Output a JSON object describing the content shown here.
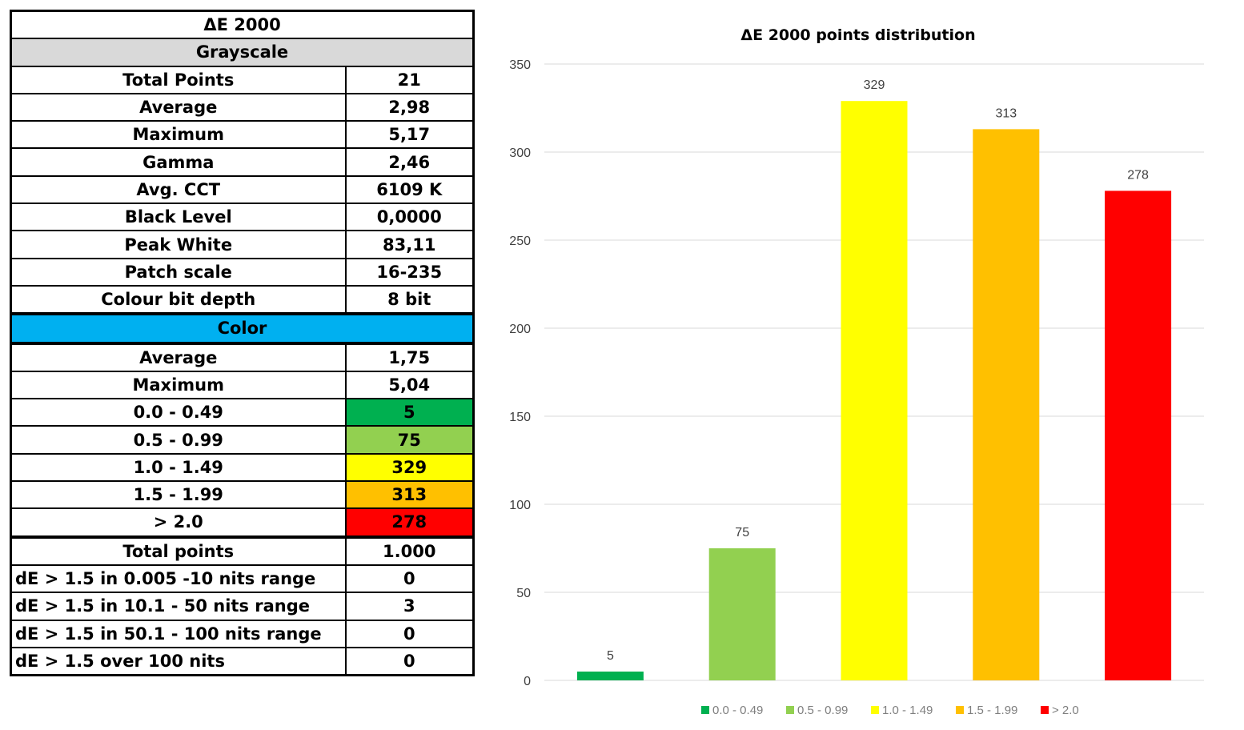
{
  "table": {
    "title": "ΔE 2000",
    "grayscale_header": "Grayscale",
    "grayscale_header_color": "#d9d9d9",
    "grayscale_rows": [
      {
        "label": "Total Points",
        "value": "21"
      },
      {
        "label": "Average",
        "value": "2,98"
      },
      {
        "label": "Maximum",
        "value": "5,17"
      },
      {
        "label": "Gamma",
        "value": "2,46"
      },
      {
        "label": "Avg. CCT",
        "value": "6109 K"
      },
      {
        "label": "Black Level",
        "value": "0,0000"
      },
      {
        "label": "Peak White",
        "value": "83,11"
      },
      {
        "label": "Patch scale",
        "value": "16-235"
      },
      {
        "label": "Colour bit depth",
        "value": "8 bit"
      }
    ],
    "color_header": "Color",
    "color_header_color": "#00b0f0",
    "color_rows": [
      {
        "label": "Average",
        "value": "1,75"
      },
      {
        "label": "Maximum",
        "value": "5,04"
      }
    ],
    "range_rows": [
      {
        "label": "0.0 - 0.49",
        "value": "5",
        "color": "#00b050"
      },
      {
        "label": "0.5 - 0.99",
        "value": "75",
        "color": "#92d050"
      },
      {
        "label": "1.0 - 1.49",
        "value": "329",
        "color": "#ffff00"
      },
      {
        "label": "1.5 - 1.99",
        "value": "313",
        "color": "#ffc000"
      },
      {
        "label": "> 2.0",
        "value": "278",
        "color": "#ff0000"
      }
    ],
    "total_row": {
      "label": "Total points",
      "value": "1.000"
    },
    "nits_rows": [
      {
        "label": "dE > 1.5 in 0.005 -10 nits range",
        "value": "0"
      },
      {
        "label": "dE > 1.5 in 10.1 - 50  nits range",
        "value": "3"
      },
      {
        "label": "dE > 1.5 in 50.1 - 100 nits range",
        "value": "0"
      },
      {
        "label": "dE > 1.5 over 100 nits",
        "value": "0"
      }
    ]
  },
  "chart_data": {
    "type": "bar",
    "title": "ΔE 2000 points distribution",
    "categories": [
      "0.0 - 0.49",
      "0.5 - 0.99",
      "1.0 - 1.49",
      "1.5 - 1.99",
      "> 2.0"
    ],
    "values": [
      5,
      75,
      329,
      313,
      278
    ],
    "colors": [
      "#00b050",
      "#92d050",
      "#ffff00",
      "#ffc000",
      "#ff0000"
    ],
    "ylim": [
      0,
      350
    ],
    "yticks": [
      0,
      50,
      100,
      150,
      200,
      250,
      300,
      350
    ],
    "grid": true,
    "legend": "bottom",
    "data_labels": true
  }
}
